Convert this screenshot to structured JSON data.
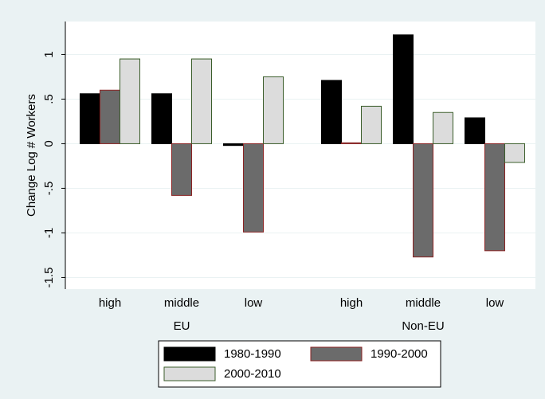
{
  "chart_data": {
    "type": "bar",
    "ylabel": "Change Log # Workers",
    "categories": [
      "high",
      "middle",
      "low",
      "high",
      "middle",
      "low"
    ],
    "groups": [
      "EU",
      "Non-EU"
    ],
    "series": [
      {
        "name": "1980-1990",
        "color": "#000000",
        "edgecolor": "#000000",
        "values": [
          0.56,
          0.56,
          -0.02,
          0.71,
          1.22,
          0.29
        ]
      },
      {
        "name": "1990-2000",
        "color": "#6b6b6b",
        "edgecolor": "#8b2323",
        "values": [
          0.6,
          -0.58,
          -0.99,
          0.01,
          -1.27,
          -1.2
        ]
      },
      {
        "name": "2000-2010",
        "color": "#dcdcdc",
        "edgecolor": "#3b5e2b",
        "values": [
          0.95,
          0.95,
          0.75,
          0.42,
          0.35,
          -0.21
        ]
      }
    ],
    "ylim": [
      -1.63,
      1.37
    ],
    "yticks": [
      -1.5,
      -1,
      {
        "value": -0.5,
        "label": "-.5"
      },
      0,
      {
        "value": 0.5,
        "label": ".5"
      },
      1
    ],
    "grid": true
  }
}
